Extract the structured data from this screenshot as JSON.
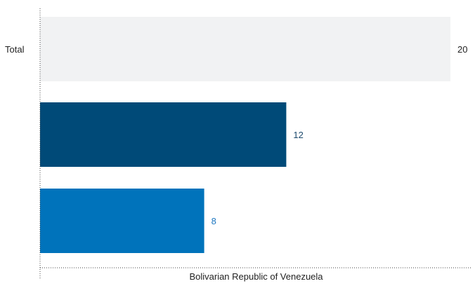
{
  "chart_data": {
    "type": "bar",
    "orientation": "horizontal",
    "categories": [
      "Total",
      "",
      ""
    ],
    "values": [
      20,
      12,
      8
    ],
    "value_labels": [
      "20",
      "12",
      "8"
    ],
    "xlabel": "Bolivarian Republic of Venezuela",
    "xlim": [
      0,
      20
    ],
    "grid": false,
    "legend": "none",
    "colors": {
      "bars": [
        "#f1f2f3",
        "#004a78",
        "#0073bb"
      ],
      "value_labels": [
        "#222222",
        "#1d4a6d",
        "#1f78c1"
      ],
      "axis": "#444444",
      "text": "#222222"
    }
  }
}
